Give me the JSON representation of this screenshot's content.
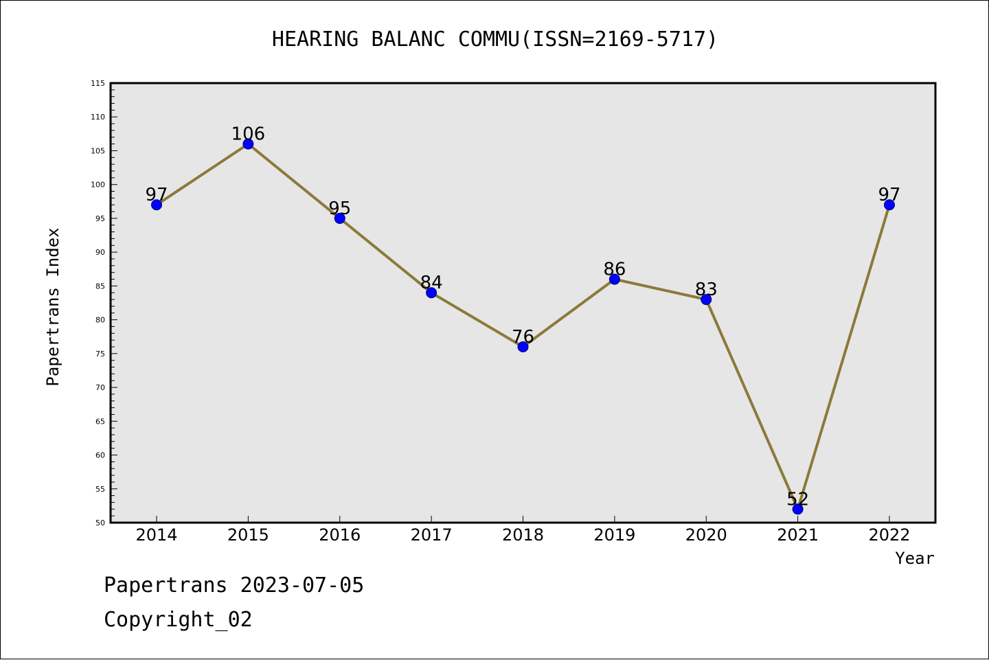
{
  "chart_data": {
    "type": "line",
    "title": "HEARING BALANC COMMU(ISSN=2169-5717)",
    "xlabel": "Year",
    "ylabel": "Papertrans Index",
    "categories": [
      "2014",
      "2015",
      "2016",
      "2017",
      "2018",
      "2019",
      "2020",
      "2021",
      "2022"
    ],
    "values": [
      97,
      106,
      95,
      84,
      76,
      86,
      83,
      52,
      97
    ],
    "ylim": [
      50,
      115
    ],
    "y_major_step": 5,
    "y_minor_step": 1,
    "line_color": "#8b7a3a",
    "marker_color": "#0000ff",
    "plot_background": "#e6e6e6",
    "grid": false,
    "data_labels": true
  },
  "footer": {
    "line1": "Papertrans 2023-07-05",
    "line2": "Copyright_02"
  }
}
